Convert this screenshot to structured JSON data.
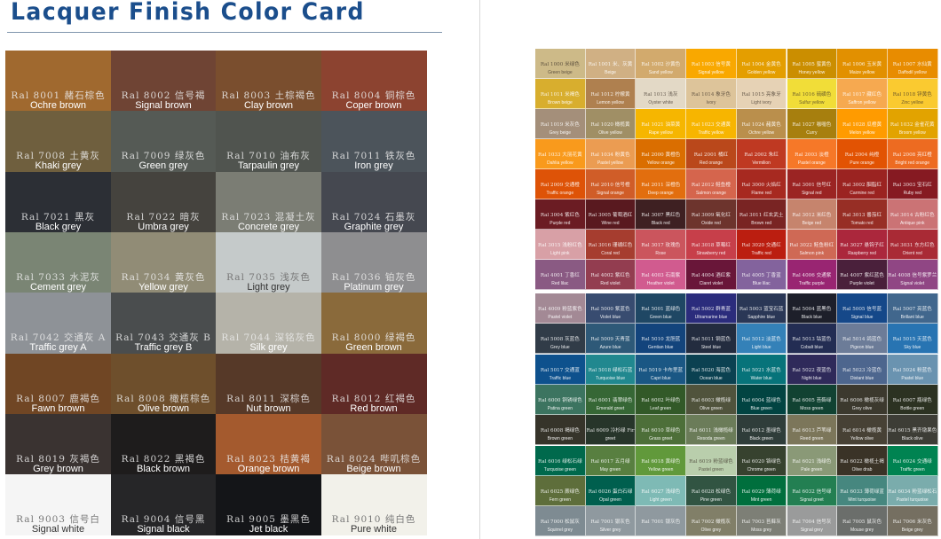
{
  "title": "Lacquer Finish Color Card",
  "left_card": [
    [
      {
        "code": "Ral 8001",
        "cn": "赭石棕色",
        "en": "Ochre brown",
        "color": "#A0692F"
      },
      {
        "code": "Ral 8002",
        "cn": "信号褐",
        "en": "Signal brown",
        "color": "#6F4434"
      },
      {
        "code": "Ral 8003",
        "cn": "土棕褐色",
        "en": "Clay brown",
        "color": "#7A4E2E"
      },
      {
        "code": "Ral 8004",
        "cn": "铜棕色",
        "en": "Coper brown",
        "color": "#8C4330"
      }
    ],
    [
      {
        "code": "Ral 7008",
        "cn": "土黄灰",
        "en": "Khaki grey",
        "color": "#6F5F3E"
      },
      {
        "code": "Ral 7009",
        "cn": "绿灰色",
        "en": "Green grey",
        "color": "#555A55"
      },
      {
        "code": "Ral 7010",
        "cn": "油布灰",
        "en": "Tarpaulin grey",
        "color": "#50544F"
      },
      {
        "code": "Ral 7011",
        "cn": "铁灰色",
        "en": "Iron grey",
        "color": "#4C545B"
      }
    ],
    [
      {
        "code": "Ral 7021",
        "cn": "黑灰",
        "en": "Black grey",
        "color": "#2C2F35"
      },
      {
        "code": "Ral 7022",
        "cn": "暗灰",
        "en": "Umbra grey",
        "color": "#45433E"
      },
      {
        "code": "Ral 7023",
        "cn": "混凝土灰",
        "en": "Concrete grey",
        "color": "#7B7D74"
      },
      {
        "code": "Ral 7024",
        "cn": "石墨灰",
        "en": "Graphite grey",
        "color": "#454850"
      }
    ],
    [
      {
        "code": "Ral 7033",
        "cn": "水泥灰",
        "en": "Cement grey",
        "color": "#7A8574"
      },
      {
        "code": "Ral 7034",
        "cn": "黄灰色",
        "en": "Yellow grey",
        "color": "#918C76"
      },
      {
        "code": "Ral 7035",
        "cn": "浅灰色",
        "en": "Light grey",
        "color": "#C5CACA"
      },
      {
        "code": "Ral 7036",
        "cn": "铂灰色",
        "en": "Platinum grey",
        "color": "#8E8E90"
      }
    ],
    [
      {
        "code": "Ral 7042",
        "cn": "交通灰 A",
        "en": "Traffic grey A",
        "color": "#8E9297"
      },
      {
        "code": "Ral 7043",
        "cn": "交通灰 B",
        "en": "Traffic grey B",
        "color": "#4A4D4E"
      },
      {
        "code": "Ral 7044",
        "cn": "深铭灰色",
        "en": "Silk grey",
        "color": "#B5B3A9"
      },
      {
        "code": "Ral 8000",
        "cn": "绿褐色",
        "en": "Green brown",
        "color": "#8A6A3B"
      }
    ],
    [
      {
        "code": "Ral 8007",
        "cn": "鹿褐色",
        "en": "Fawn brown",
        "color": "#704624"
      },
      {
        "code": "Ral 8008",
        "cn": "橄榄棕色",
        "en": "Olive brown",
        "color": "#6E4F2C"
      },
      {
        "code": "Ral 8011",
        "cn": "深棕色",
        "en": "Nut brown",
        "color": "#563928"
      },
      {
        "code": "Ral 8012",
        "cn": "红褐色",
        "en": "Red brown",
        "color": "#5F2A26"
      }
    ],
    [
      {
        "code": "Ral 8019",
        "cn": "灰褐色",
        "en": "Grey brown",
        "color": "#3A3331"
      },
      {
        "code": "Ral 8022",
        "cn": "黑褐色",
        "en": "Black brown",
        "color": "#1E1C1C"
      },
      {
        "code": "Ral 8023",
        "cn": "桔黄褐",
        "en": "Orange brown",
        "color": "#A45A2E"
      },
      {
        "code": "Ral 8024",
        "cn": "哔叽棕色",
        "en": "Beige brown",
        "color": "#7A5238"
      }
    ],
    [
      {
        "code": "Ral 9003",
        "cn": "信号白",
        "en": "Signal white",
        "color": "#F5F5F5"
      },
      {
        "code": "Ral 9004",
        "cn": "信号黑",
        "en": "Signal black",
        "color": "#262628"
      },
      {
        "code": "Ral 9005",
        "cn": "墨黑色",
        "en": "Jet black",
        "color": "#141518"
      },
      {
        "code": "Ral 9010",
        "cn": "纯白色",
        "en": "Pure white",
        "color": "#F2F1EA"
      }
    ]
  ],
  "right_card": [
    [
      {
        "code": "Ral 1000",
        "cn": "米绿色",
        "en": "Green beige",
        "color": "#CDBA88"
      },
      {
        "code": "Ral 1001",
        "cn": "米、灰黄",
        "en": "Beige",
        "color": "#D0B084"
      },
      {
        "code": "Ral 1002",
        "cn": "沙黄色",
        "en": "Sand yellow",
        "color": "#D2AA6D"
      },
      {
        "code": "Ral 1003",
        "cn": "信号黄",
        "en": "Signal yellow",
        "color": "#F9A800"
      },
      {
        "code": "Ral 1004",
        "cn": "金黄色",
        "en": "Golden yellow",
        "color": "#E49E00"
      },
      {
        "code": "Ral 1005",
        "cn": "蜜黄色",
        "en": "Honey yellow",
        "color": "#CB8E00"
      },
      {
        "code": "Ral 1006",
        "cn": "玉米黄",
        "en": "Maize yellow",
        "color": "#E29000"
      },
      {
        "code": "Ral 1007",
        "cn": "水仙黄",
        "en": "Daffodil yellow",
        "color": "#E88C00"
      }
    ],
    [
      {
        "code": "Ral 1011",
        "cn": "米褐色",
        "en": "Brown beige",
        "color": "#D8AE2E"
      },
      {
        "code": "Ral 1012",
        "cn": "柠檬黄",
        "en": "Lemon yellow",
        "color": "#AF804F"
      },
      {
        "code": "Ral 1013",
        "cn": "浅灰",
        "en": "Oyster white",
        "color": "#E3D9C6"
      },
      {
        "code": "Ral 1014",
        "cn": "象牙色",
        "en": "Ivory",
        "color": "#DDC49A"
      },
      {
        "code": "Ral 1015",
        "cn": "亮象牙",
        "en": "Light ivory",
        "color": "#E6D2B5"
      },
      {
        "code": "Ral 1016",
        "cn": "硫磺色",
        "en": "Sulfur yellow",
        "color": "#F1DD38"
      },
      {
        "code": "Ral 1017",
        "cn": "藏红色",
        "en": "Saffron yellow",
        "color": "#F6A950"
      },
      {
        "code": "Ral 1018",
        "cn": "锌黄色",
        "en": "Zinc yellow",
        "color": "#FACA30"
      }
    ],
    [
      {
        "code": "Ral 1019",
        "cn": "米灰色",
        "en": "Grey beige",
        "color": "#A48F7A"
      },
      {
        "code": "Ral 1020",
        "cn": "橄榄黄",
        "en": "Olive yellow",
        "color": "#A08F65"
      },
      {
        "code": "Ral 1021",
        "cn": "油菜黄",
        "en": "Rape yellow",
        "color": "#F6B600"
      },
      {
        "code": "Ral 1023",
        "cn": "交通黄",
        "en": "Traffic yellow",
        "color": "#F7B500"
      },
      {
        "code": "Ral 1024",
        "cn": "赭黄色",
        "en": "Ochre yellow",
        "color": "#BA8F4C"
      },
      {
        "code": "Ral 1027",
        "cn": "咖喱色",
        "en": "Curry",
        "color": "#A77F0E"
      },
      {
        "code": "Ral 1028",
        "cn": "瓜橙黄",
        "en": "Melon yellow",
        "color": "#FF9B00"
      },
      {
        "code": "Ral 1032",
        "cn": "金雀花黄",
        "en": "Broom yellow",
        "color": "#E2A300"
      }
    ],
    [
      {
        "code": "Ral 1033",
        "cn": "大丽花黄",
        "en": "Dahlia yellow",
        "color": "#F99A1C"
      },
      {
        "code": "Ral 1034",
        "cn": "粉黄色",
        "en": "Pastel yellow",
        "color": "#EB9C52"
      },
      {
        "code": "Ral 2000",
        "cn": "黄橙色",
        "en": "Yellow orange",
        "color": "#DA6E00"
      },
      {
        "code": "Ral 2001",
        "cn": "橘红",
        "en": "Red orange",
        "color": "#BA481B"
      },
      {
        "code": "Ral 2002",
        "cn": "朱红",
        "en": "Vermilion",
        "color": "#BF3922"
      },
      {
        "code": "Ral 2003",
        "cn": "淡橙",
        "en": "Pastel orange",
        "color": "#F67828"
      },
      {
        "code": "Ral 2004",
        "cn": "纯橙",
        "en": "Pure orange",
        "color": "#E25303"
      },
      {
        "code": "Ral 2008",
        "cn": "亮红橙",
        "en": "Bright red orange",
        "color": "#ED6B21"
      }
    ],
    [
      {
        "code": "Ral 2009",
        "cn": "交通橙",
        "en": "Traffic orange",
        "color": "#DE5307"
      },
      {
        "code": "Ral 2010",
        "cn": "信号橙",
        "en": "Signal orange",
        "color": "#D05D28"
      },
      {
        "code": "Ral 2011",
        "cn": "深橙色",
        "en": "Deep orange",
        "color": "#E26E0E"
      },
      {
        "code": "Ral 2012",
        "cn": "鲑鱼橙",
        "en": "Salmon orange",
        "color": "#D5654D"
      },
      {
        "code": "Ral 3000",
        "cn": "火焰红",
        "en": "Flame red",
        "color": "#A72920"
      },
      {
        "code": "Ral 3001",
        "cn": "信号红",
        "en": "Signal red",
        "color": "#9B2423"
      },
      {
        "code": "Ral 3002",
        "cn": "胭脂红",
        "en": "Carmine red",
        "color": "#9B2321"
      },
      {
        "code": "Ral 3003",
        "cn": "宝石红",
        "en": "Ruby red",
        "color": "#861A22"
      }
    ],
    [
      {
        "code": "Ral 3004",
        "cn": "紫红色",
        "en": "Purple red",
        "color": "#6B1C23"
      },
      {
        "code": "Ral 3005",
        "cn": "葡萄酒红",
        "en": "Wine red",
        "color": "#59191F"
      },
      {
        "code": "Ral 3007",
        "cn": "黑红色",
        "en": "Black red",
        "color": "#3E2022"
      },
      {
        "code": "Ral 3009",
        "cn": "氧化红",
        "en": "Oxide red",
        "color": "#6D342D"
      },
      {
        "code": "Ral 3011",
        "cn": "红玄武土",
        "en": "Brown red",
        "color": "#792423"
      },
      {
        "code": "Ral 3012",
        "cn": "米红色",
        "en": "Beige red",
        "color": "#C6846D"
      },
      {
        "code": "Ral 3013",
        "cn": "番茄红",
        "en": "Tomato red",
        "color": "#972E25"
      },
      {
        "code": "Ral 3014",
        "cn": "古粉红色",
        "en": "Antique pink",
        "color": "#CB7375"
      }
    ],
    [
      {
        "code": "Ral 3015",
        "cn": "浅粉红色",
        "en": "Light pink",
        "color": "#D8A0A6"
      },
      {
        "code": "Ral 3016",
        "cn": "珊瑚红色",
        "en": "Coral red",
        "color": "#A63D2F"
      },
      {
        "code": "Ral 3017",
        "cn": "玫瑰色",
        "en": "Rose",
        "color": "#CB555D"
      },
      {
        "code": "Ral 3018",
        "cn": "草莓红",
        "en": "Strawberry red",
        "color": "#C73F4A"
      },
      {
        "code": "Ral 3020",
        "cn": "交通红",
        "en": "Traffic red",
        "color": "#BB1E10"
      },
      {
        "code": "Ral 3022",
        "cn": "鲑鱼粉红",
        "en": "Salmon pink",
        "color": "#CF6955"
      },
      {
        "code": "Ral 3027",
        "cn": "悬钩子红",
        "en": "Raspberry red",
        "color": "#AB273C"
      },
      {
        "code": "Ral 3031",
        "cn": "东方红色",
        "en": "Orient red",
        "color": "#A92A35"
      }
    ],
    [
      {
        "code": "Ral 4001",
        "cn": "丁香红",
        "en": "Red lilac",
        "color": "#8A5A83"
      },
      {
        "code": "Ral 4002",
        "cn": "紫红色",
        "en": "Red violet",
        "color": "#933D50"
      },
      {
        "code": "Ral 4003",
        "cn": "石南紫",
        "en": "Heather violet",
        "color": "#D15B8F"
      },
      {
        "code": "Ral 4004",
        "cn": "酒红紫",
        "en": "Claret violet",
        "color": "#691639"
      },
      {
        "code": "Ral 4005",
        "cn": "丁香蓝",
        "en": "Blue lilac",
        "color": "#83639D"
      },
      {
        "code": "Ral 4006",
        "cn": "交通紫",
        "en": "Traffic purple",
        "color": "#992572"
      },
      {
        "code": "Ral 4007",
        "cn": "紫红蓝色",
        "en": "Purple violet",
        "color": "#4A203B"
      },
      {
        "code": "Ral 4008",
        "cn": "信号紫罗兰",
        "en": "Signal violet",
        "color": "#904684"
      }
    ],
    [
      {
        "code": "Ral 4009",
        "cn": "粉蓝紫色",
        "en": "Pastel violet",
        "color": "#A38995"
      },
      {
        "code": "Ral 5000",
        "cn": "紫蓝色",
        "en": "Violet blue",
        "color": "#384C70"
      },
      {
        "code": "Ral 5001",
        "cn": "蓝绿色",
        "en": "Green blue",
        "color": "#1F4764"
      },
      {
        "code": "Ral 5002",
        "cn": "群青蓝",
        "en": "Ultramarine blue",
        "color": "#2B2C7C"
      },
      {
        "code": "Ral 5003",
        "cn": "蓝宝石蓝",
        "en": "Sapphire blue",
        "color": "#2A3756"
      },
      {
        "code": "Ral 5004",
        "cn": "蓝黑色",
        "en": "Black blue",
        "color": "#1D1F2A"
      },
      {
        "code": "Ral 5005",
        "cn": "信号蓝",
        "en": "Signal blue",
        "color": "#154889"
      },
      {
        "code": "Ral 5007",
        "cn": "亮蓝色",
        "en": "Brillant blue",
        "color": "#41678D"
      }
    ],
    [
      {
        "code": "Ral 5008",
        "cn": "灰蓝色",
        "en": "Grey blue",
        "color": "#313C48"
      },
      {
        "code": "Ral 5009",
        "cn": "天青蓝",
        "en": "Azure blue",
        "color": "#2E5978"
      },
      {
        "code": "Ral 5010",
        "cn": "龙胆蓝",
        "en": "Gentian blue",
        "color": "#13447C"
      },
      {
        "code": "Ral 5011",
        "cn": "钢蓝色",
        "en": "Steel blue",
        "color": "#232C3F"
      },
      {
        "code": "Ral 5012",
        "cn": "淡蓝色",
        "en": "Light blue",
        "color": "#3481B8"
      },
      {
        "code": "Ral 5013",
        "cn": "钴蓝色",
        "en": "Cobalt blue",
        "color": "#232D53"
      },
      {
        "code": "Ral 5014",
        "cn": "鸽蓝色",
        "en": "Pigeon blue",
        "color": "#6C7C98"
      },
      {
        "code": "Ral 5015",
        "cn": "天蓝色",
        "en": "Sky blue",
        "color": "#2874B2"
      }
    ],
    [
      {
        "code": "Ral 5017",
        "cn": "交通蓝",
        "en": "Traffic blue",
        "color": "#0E518D"
      },
      {
        "code": "Ral 5018",
        "cn": "绿松石蓝",
        "en": "Turquoise blue",
        "color": "#21888F"
      },
      {
        "code": "Ral 5019",
        "cn": "卡布里蓝",
        "en": "Capri blue",
        "color": "#1A5784"
      },
      {
        "code": "Ral 5020",
        "cn": "海蓝色",
        "en": "Ocean blue",
        "color": "#0B4151"
      },
      {
        "code": "Ral 5021",
        "cn": "水蓝色",
        "en": "Water blue",
        "color": "#07737A"
      },
      {
        "code": "Ral 5022",
        "cn": "夜蓝色",
        "en": "Night blue",
        "color": "#2F2A5A"
      },
      {
        "code": "Ral 5023",
        "cn": "冷蓝色",
        "en": "Distant blue",
        "color": "#4D668E"
      },
      {
        "code": "Ral 5024",
        "cn": "粉蓝色",
        "en": "Pastel blue",
        "color": "#6A93B0"
      }
    ],
    [
      {
        "code": "Ral 6000",
        "cn": "铜锈绿色",
        "en": "Patina green",
        "color": "#3C7460"
      },
      {
        "code": "Ral 6001",
        "cn": "翡翠绿色",
        "en": "Emerald greet",
        "color": "#366735"
      },
      {
        "code": "Ral 6002",
        "cn": "叶绿色",
        "en": "Leaf green",
        "color": "#325928"
      },
      {
        "code": "Ral 6003",
        "cn": "橄榄绿",
        "en": "Olive green",
        "color": "#50533C"
      },
      {
        "code": "Ral 6004",
        "cn": "蓝绿色",
        "en": "Blue green",
        "color": "#024442"
      },
      {
        "code": "Ral 6005",
        "cn": "苔藓绿",
        "en": "Moss green",
        "color": "#114232"
      },
      {
        "code": "Ral 6006",
        "cn": "橄榄灰绿",
        "en": "Grey olive",
        "color": "#3C392E"
      },
      {
        "code": "Ral 6007",
        "cn": "瓶绿色",
        "en": "Bottle green",
        "color": "#2C3222"
      }
    ],
    [
      {
        "code": "Ral 6008",
        "cn": "褐绿色",
        "en": "Brown green",
        "color": "#36342A"
      },
      {
        "code": "Ral 6009",
        "cn": "冷杉绿 Fir",
        "en": "greet",
        "color": "#27352A"
      },
      {
        "code": "Ral 6010",
        "cn": "草绿色",
        "en": "Grass greet",
        "color": "#4D6F39"
      },
      {
        "code": "Ral 6011",
        "cn": "浅橄榄绿",
        "en": "Resoda green",
        "color": "#6B7C59"
      },
      {
        "code": "Ral 6012",
        "cn": "墨绿色",
        "en": "Black green",
        "color": "#2F3D3A"
      },
      {
        "code": "Ral 6013",
        "cn": "芦苇绿",
        "en": "Reed green",
        "color": "#7C765A"
      },
      {
        "code": "Ral 6014",
        "cn": "橄榄黄",
        "en": "Yellow olive",
        "color": "#474135"
      },
      {
        "code": "Ral 6015",
        "cn": "黑齐墩果色",
        "en": "Black olive",
        "color": "#3D3D36"
      }
    ],
    [
      {
        "code": "Ral 6016",
        "cn": "绿松石绿",
        "en": "Turquoise green",
        "color": "#00694C"
      },
      {
        "code": "Ral 6017",
        "cn": "五月绿",
        "en": "May green",
        "color": "#587F40"
      },
      {
        "code": "Ral 6018",
        "cn": "黄绿色",
        "en": "Yellow green",
        "color": "#61993B"
      },
      {
        "code": "Ral 6019",
        "cn": "粉蓝绿色",
        "en": "Pastel green",
        "color": "#B9CEAC"
      },
      {
        "code": "Ral 6020",
        "cn": "铬绿色",
        "en": "Chrome green",
        "color": "#37422F"
      },
      {
        "code": "Ral 6021",
        "cn": "浅绿色",
        "en": "Pale green",
        "color": "#8A9977"
      },
      {
        "code": "Ral 6022",
        "cn": "橄榄土褐",
        "en": "Olive drab",
        "color": "#3A3327"
      },
      {
        "code": "Ral 6024",
        "cn": "交通绿",
        "en": "Traffic green",
        "color": "#008351"
      }
    ],
    [
      {
        "code": "Ral 6025",
        "cn": "蕨绿色",
        "en": "Fern green",
        "color": "#5E6E3B"
      },
      {
        "code": "Ral 6026",
        "cn": "蛋白石绿",
        "en": "Opal green",
        "color": "#005F4E"
      },
      {
        "code": "Ral 6027",
        "cn": "浅绿色",
        "en": "Light green",
        "color": "#7EBAB5"
      },
      {
        "code": "Ral 6028",
        "cn": "松绿色",
        "en": "Pine green",
        "color": "#315442"
      },
      {
        "code": "Ral 6029",
        "cn": "薄荷绿",
        "en": "Mint green",
        "color": "#006F3D"
      },
      {
        "code": "Ral 6032",
        "cn": "信号绿",
        "en": "Signal greet",
        "color": "#237F52"
      },
      {
        "code": "Ral 6033",
        "cn": "薄荷绿蓝",
        "en": "Mint turquoise",
        "color": "#46877F"
      },
      {
        "code": "Ral 6034",
        "cn": "粉蓝绿松石",
        "en": "Pastel turquoise",
        "color": "#7AACAC"
      }
    ],
    [
      {
        "code": "Ral 7000",
        "cn": "松鼠灰",
        "en": "Squirrel grey",
        "color": "#7E8B92"
      },
      {
        "code": "Ral 7001",
        "cn": "银灰色",
        "en": "Silver grey",
        "color": "#8F999F"
      },
      {
        "code": "Ral 7001",
        "cn": "银灰色",
        "en": "",
        "color": "#8F999F"
      },
      {
        "code": "Ral 7002",
        "cn": "橄榄灰",
        "en": "Olive grey",
        "color": "#817F68"
      },
      {
        "code": "Ral 7003",
        "cn": "苔藓灰",
        "en": "Moss grey",
        "color": "#7D7F76"
      },
      {
        "code": "Ral 7004",
        "cn": "信号灰",
        "en": "Signal grey",
        "color": "#9A9B9B"
      },
      {
        "code": "Ral 7005",
        "cn": "鼠灰色",
        "en": "Mouse grey",
        "color": "#6B6E6B"
      },
      {
        "code": "Ral 7006",
        "cn": "米灰色",
        "en": "Beige grey",
        "color": "#756F61"
      }
    ]
  ]
}
